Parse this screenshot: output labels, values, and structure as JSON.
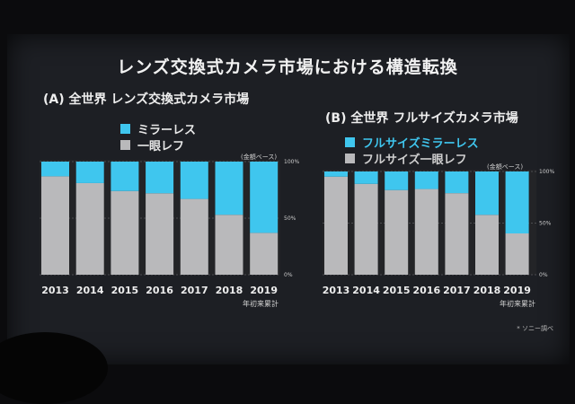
{
  "slide": {
    "title": "レンズ交換式カメラ市場における構造転換",
    "footnote": "* ソニー調べ"
  },
  "colors": {
    "mirrorless": "#3fc6ee",
    "dslr": "#b9b9bb",
    "panel": "#232427"
  },
  "chart_data": [
    {
      "type": "bar",
      "title": "(A) 全世界 レンズ交換式カメラ市場",
      "unit_note": "(金額ベース)",
      "categories": [
        "2013",
        "2014",
        "2015",
        "2016",
        "2017",
        "2018",
        "2019"
      ],
      "category_note": "年初来累計",
      "y_tick_labels": [
        "100%",
        "50%",
        "0%"
      ],
      "ylim": [
        0,
        100
      ],
      "stacked": true,
      "series": [
        {
          "name": "一眼レフ",
          "color": "#b9b9bb",
          "values": [
            87,
            81,
            74,
            72,
            67,
            53,
            37
          ]
        },
        {
          "name": "ミラーレス",
          "color": "#3fc6ee",
          "values": [
            13,
            19,
            26,
            28,
            33,
            47,
            63
          ]
        }
      ]
    },
    {
      "type": "bar",
      "title": "(B) 全世界 フルサイズカメラ市場",
      "unit_note": "(金額ベース)",
      "categories": [
        "2013",
        "2014",
        "2015",
        "2016",
        "2017",
        "2018",
        "2019"
      ],
      "category_note": "年初来累計",
      "y_tick_labels": [
        "100%",
        "50%",
        "0%"
      ],
      "ylim": [
        0,
        100
      ],
      "stacked": true,
      "series": [
        {
          "name": "フルサイズ一眼レフ",
          "color": "#b9b9bb",
          "values": [
            95,
            88,
            82,
            83,
            79,
            58,
            40
          ]
        },
        {
          "name": "フルサイズミラーレス",
          "color": "#3fc6ee",
          "values": [
            5,
            12,
            18,
            17,
            21,
            42,
            60
          ]
        }
      ]
    }
  ]
}
